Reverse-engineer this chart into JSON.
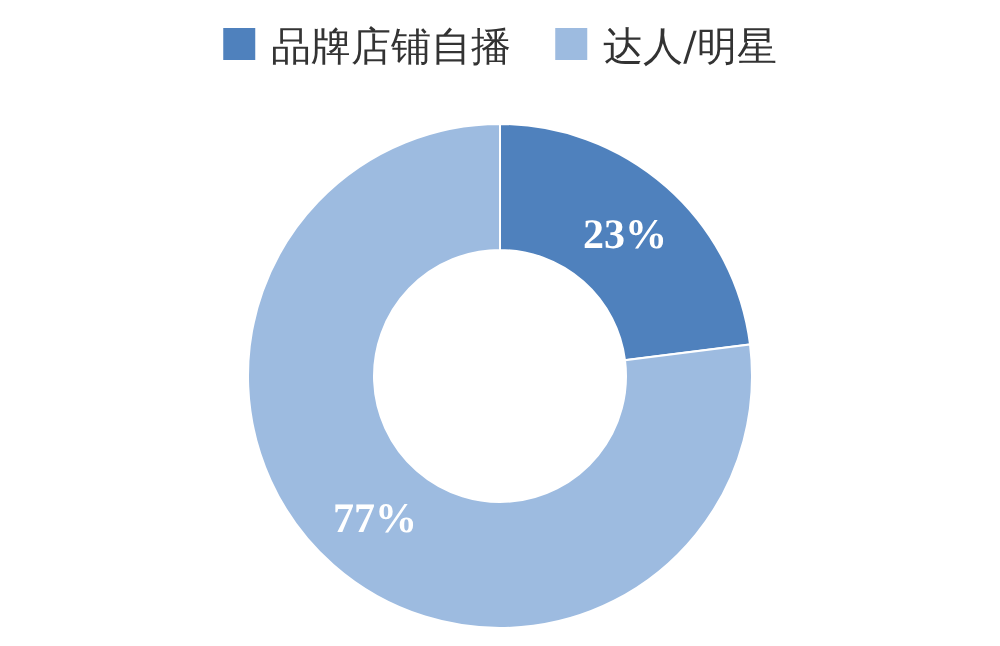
{
  "chart_data": {
    "type": "donut",
    "categories": [
      "品牌店铺自播",
      "达人/明星"
    ],
    "values": [
      23,
      77
    ],
    "colors": [
      "#4f81bd",
      "#9dbbe0"
    ],
    "value_labels": [
      "23%",
      "77%"
    ],
    "legend": "top"
  }
}
